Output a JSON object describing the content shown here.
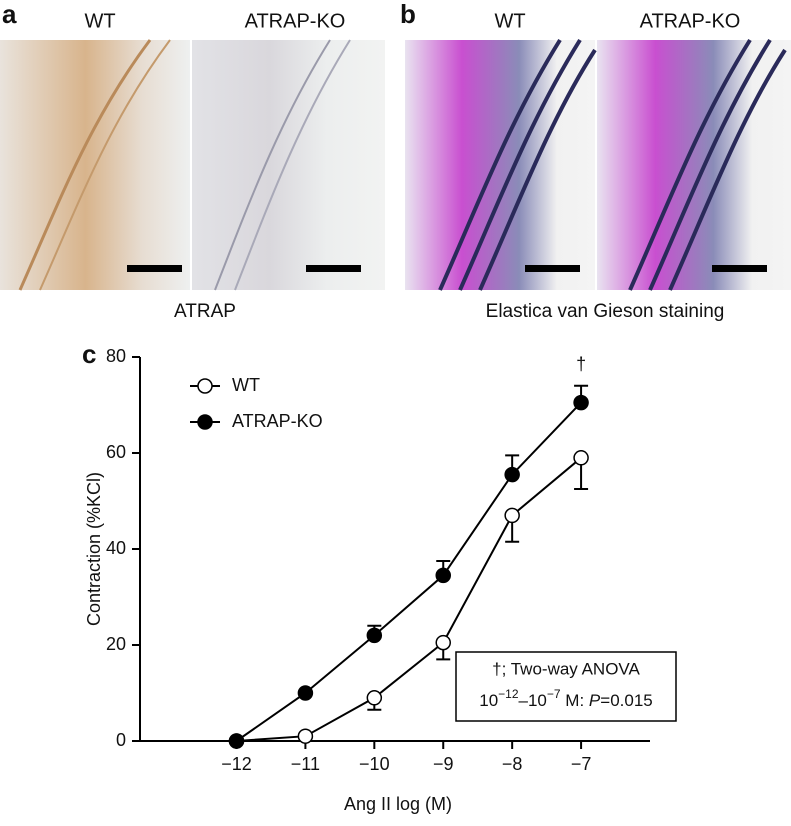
{
  "panels": [
    {
      "letter": "a",
      "images": [
        "WT",
        "ATRAP-KO"
      ],
      "caption": "ATRAP"
    },
    {
      "letter": "b",
      "images": [
        "WT",
        "ATRAP-KO"
      ],
      "caption": "Elastica van Gieson staining"
    }
  ],
  "chart_data": {
    "type": "line",
    "panel_letter": "c",
    "x_label": "Ang II log (M)",
    "y_label": "Contraction (%KCl)",
    "x": [
      -12,
      -11,
      -10,
      -9,
      -8,
      -7
    ],
    "series": [
      {
        "name": "WT",
        "color": "#000000",
        "marker_fill": "#ffffff",
        "error_direction": "down",
        "values": [
          0,
          1,
          9,
          20.5,
          47,
          59
        ],
        "errors": [
          0,
          0,
          2.5,
          3.5,
          5.5,
          6.5
        ]
      },
      {
        "name": "ATRAP-KO",
        "color": "#000000",
        "marker_fill": "#000000",
        "error_direction": "up",
        "values": [
          0,
          10,
          22,
          34.5,
          55.5,
          70.5
        ],
        "errors": [
          0,
          0,
          2,
          3,
          4,
          3.5
        ]
      }
    ],
    "xlim": [
      -13.4,
      -6.0
    ],
    "ylim": [
      0,
      80
    ],
    "xticks": [
      {
        "value": -12,
        "label": "−12"
      },
      {
        "value": -11,
        "label": "−11"
      },
      {
        "value": -10,
        "label": "−10"
      },
      {
        "value": -9,
        "label": "−9"
      },
      {
        "value": -8,
        "label": "−8"
      },
      {
        "value": -7,
        "label": "−7"
      }
    ],
    "yticks": [
      0,
      20,
      40,
      60,
      80
    ],
    "legend": "upper left",
    "significance_mark": {
      "x": -7,
      "text": "†"
    },
    "annotation": {
      "line1": "†; Two-way ANOVA",
      "line2": [
        "10",
        "−12",
        "–10",
        "−7",
        " M: ",
        "P",
        "=0.015"
      ]
    }
  }
}
